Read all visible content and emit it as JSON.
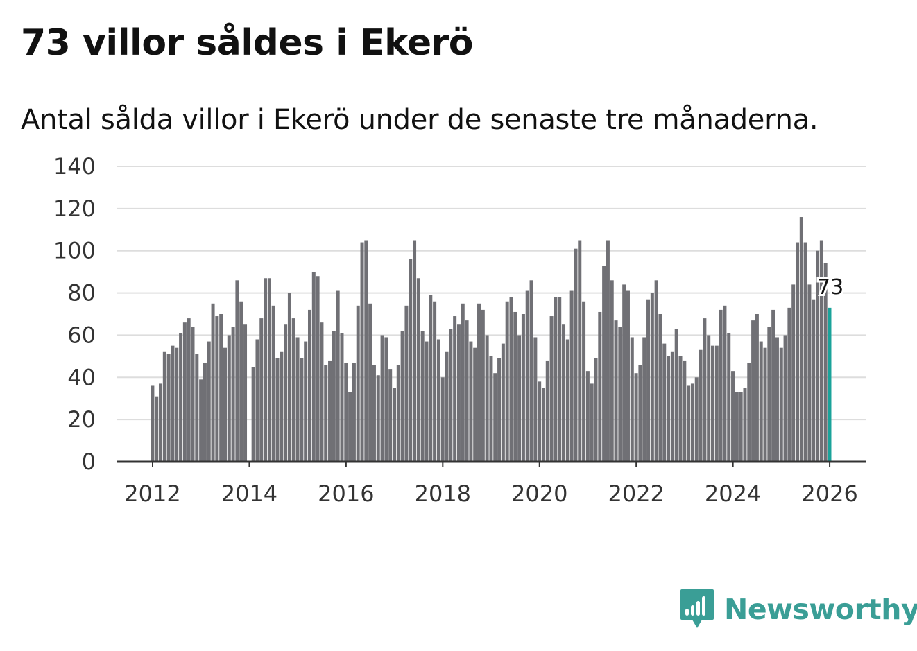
{
  "header": {
    "title": "73 villor såldes i Ekerö",
    "subtitle": "Antal sålda villor i Ekerö under de senaste tre månaderna."
  },
  "brand": {
    "name": "Newsworthy",
    "color": "#3a9e96",
    "icon": "bar-chart-speech-bubble-icon"
  },
  "colors": {
    "bar": "#707075",
    "highlight": "#1aa39a",
    "grid": "#dddddd",
    "axis": "#333333"
  },
  "chart_data": {
    "type": "bar",
    "title": "73 villor såldes i Ekerö",
    "subtitle": "Antal sålda villor i Ekerö under de senaste tre månaderna.",
    "xlabel": "",
    "ylabel": "",
    "ylim": [
      0,
      140
    ],
    "yticks": [
      "0",
      "20",
      "40",
      "60",
      "80",
      "100",
      "120",
      "140"
    ],
    "xticks": [
      "2012",
      "2014",
      "2016",
      "2018",
      "2020",
      "2022",
      "2024",
      "2026"
    ],
    "grid": true,
    "start": "2012-01",
    "frequency": "monthly",
    "last_value_label": "73",
    "values": [
      36,
      31,
      37,
      52,
      51,
      55,
      54,
      61,
      66,
      68,
      64,
      51,
      39,
      47,
      57,
      75,
      69,
      70,
      54,
      60,
      64,
      86,
      76,
      65,
      0,
      45,
      58,
      68,
      87,
      87,
      74,
      49,
      52,
      65,
      80,
      68,
      59,
      49,
      57,
      72,
      90,
      88,
      66,
      46,
      48,
      62,
      81,
      61,
      47,
      33,
      47,
      74,
      104,
      105,
      75,
      46,
      41,
      60,
      59,
      44,
      35,
      46,
      62,
      74,
      96,
      105,
      87,
      62,
      57,
      79,
      76,
      58,
      40,
      52,
      63,
      69,
      65,
      75,
      67,
      57,
      54,
      75,
      72,
      60,
      50,
      42,
      49,
      56,
      76,
      78,
      71,
      60,
      70,
      81,
      86,
      59,
      38,
      35,
      48,
      69,
      78,
      78,
      65,
      58,
      81,
      101,
      105,
      76,
      43,
      37,
      49,
      71,
      93,
      105,
      86,
      67,
      64,
      84,
      81,
      59,
      42,
      46,
      59,
      77,
      80,
      86,
      70,
      56,
      50,
      52,
      63,
      50,
      48,
      36,
      37,
      40,
      53,
      68,
      60,
      55,
      55,
      72,
      74,
      61,
      43,
      33,
      33,
      35,
      47,
      67,
      70,
      57,
      54,
      64,
      72,
      59,
      54,
      60,
      73,
      84,
      104,
      116,
      104,
      84,
      77,
      100,
      105,
      94,
      73
    ]
  }
}
